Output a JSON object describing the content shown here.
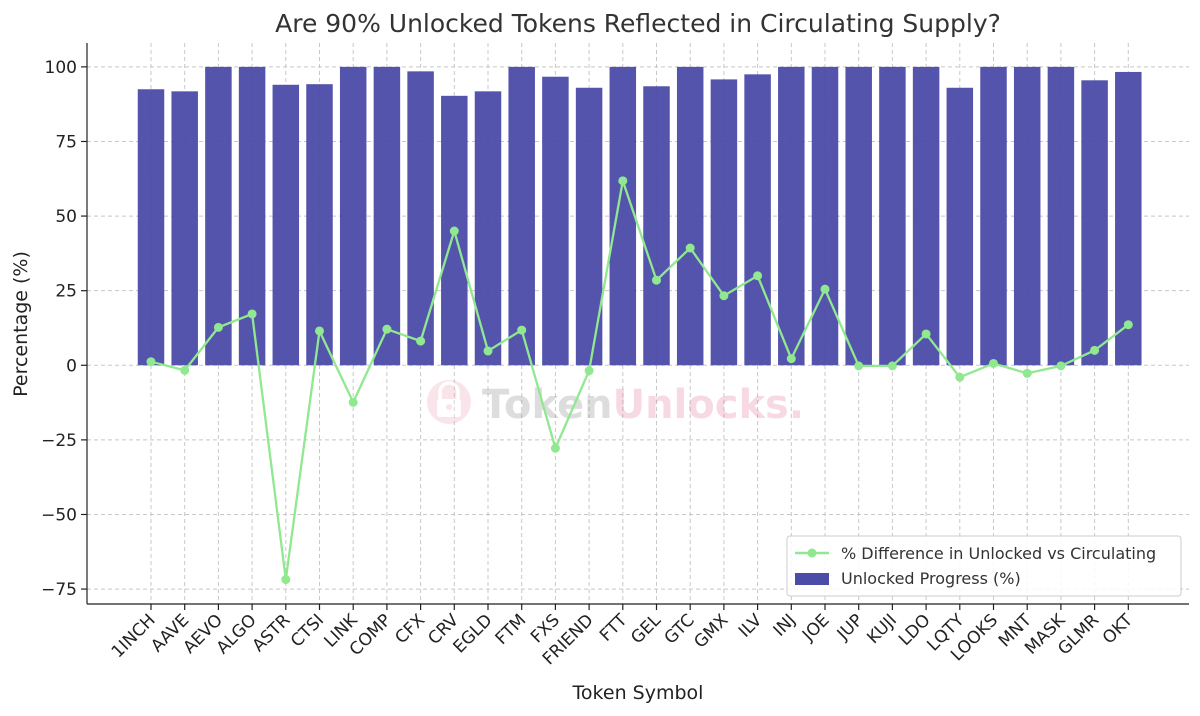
{
  "chart_data": {
    "type": "bar",
    "title": "Are 90% Unlocked Tokens Reflected in Circulating Supply?",
    "xlabel": "Token Symbol",
    "ylabel": "Percentage (%)",
    "ylim": [
      -80,
      108
    ],
    "yticks": [
      -75,
      -50,
      -25,
      0,
      25,
      50,
      75,
      100
    ],
    "grid": true,
    "legend_position": "lower-right",
    "categories": [
      "1INCH",
      "AAVE",
      "AEVO",
      "ALGO",
      "ASTR",
      "CTSI",
      "LINK",
      "COMP",
      "CFX",
      "CRV",
      "EGLD",
      "FTM",
      "FXS",
      "FRIEND",
      "FTT",
      "GEL",
      "GTC",
      "GMX",
      "ILV",
      "INJ",
      "JOE",
      "JUP",
      "KUJI",
      "LDO",
      "LQTY",
      "LOOKS",
      "MNT",
      "MASK",
      "GLMR",
      "OKT"
    ],
    "series": [
      {
        "name": "Unlocked Progress (%)",
        "kind": "bar",
        "color": "#4b4ba8",
        "values": [
          92.5,
          91.8,
          100,
          100,
          94,
          94.2,
          100,
          100,
          98.5,
          90.3,
          91.8,
          100,
          96.7,
          93,
          100,
          93.5,
          100,
          95.8,
          97.5,
          100,
          100,
          100,
          100,
          100,
          93,
          100,
          100,
          100,
          95.5,
          98.3
        ]
      },
      {
        "name": "% Difference in Unlocked vs Circulating",
        "kind": "line",
        "color": "#90e890",
        "values": [
          1.2,
          -1.7,
          12.7,
          17.2,
          -71.8,
          11.5,
          -12.4,
          12.1,
          8.1,
          45,
          4.8,
          11.8,
          -27.8,
          -1.8,
          61.8,
          28.5,
          39.3,
          23.3,
          30,
          2.2,
          25.5,
          -0.2,
          -0.2,
          10.5,
          -4,
          0.6,
          -2.7,
          -0.2,
          5,
          13.6
        ]
      }
    ]
  },
  "watermark": {
    "text_a": "Token",
    "text_b": "Unlocks",
    "dot": "."
  }
}
